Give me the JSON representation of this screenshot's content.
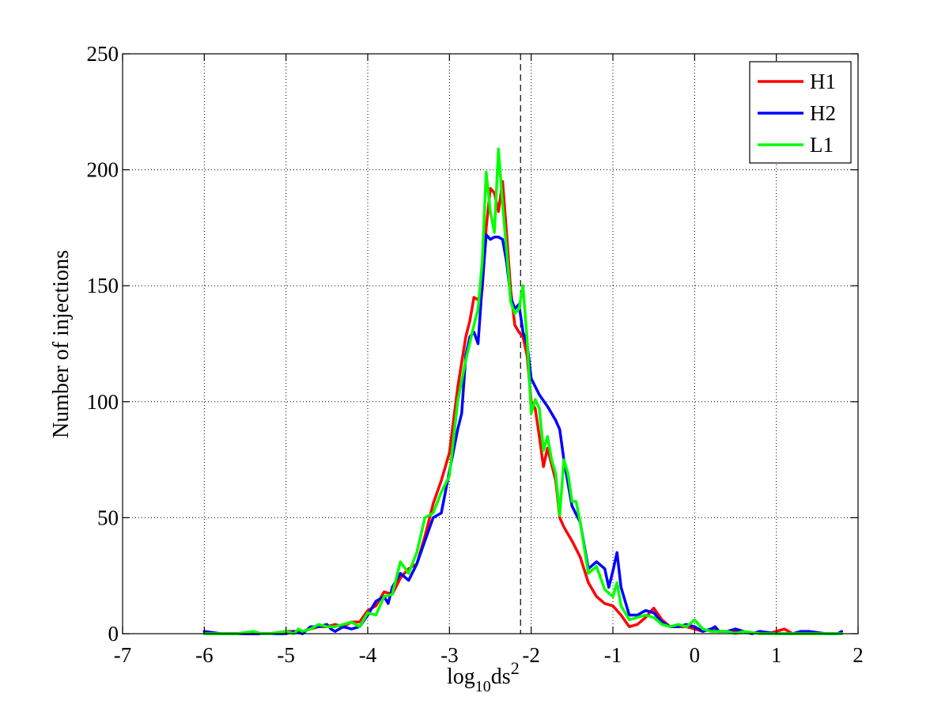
{
  "chart_data": {
    "type": "line",
    "title": "",
    "xlabel": "log",
    "xlabel_sub": "10",
    "xlabel_tail": "ds",
    "xlabel_sup": "2",
    "ylabel": "Number of injections",
    "xlim": [
      -7,
      2
    ],
    "ylim": [
      0,
      250
    ],
    "xticks": [
      -7,
      -6,
      -5,
      -4,
      -3,
      -2,
      -1,
      0,
      1,
      2
    ],
    "xtick_labels": [
      "-7",
      "-6",
      "-5",
      "-4",
      "-3",
      "-2",
      "-1",
      "0",
      "1",
      "2"
    ],
    "yticks": [
      0,
      50,
      100,
      150,
      200,
      250
    ],
    "ytick_labels": [
      "0",
      "50",
      "100",
      "150",
      "200",
      "250"
    ],
    "grid": true,
    "legend_position": "top-right",
    "threshold_x": -2.13,
    "series": [
      {
        "name": "H1",
        "color": "#ff0000",
        "points": [
          [
            -6,
            0
          ],
          [
            -5.8,
            0
          ],
          [
            -5.6,
            0
          ],
          [
            -5.4,
            0
          ],
          [
            -5.2,
            0
          ],
          [
            -5.0,
            1
          ],
          [
            -4.9,
            1
          ],
          [
            -4.8,
            1
          ],
          [
            -4.7,
            2
          ],
          [
            -4.6,
            3
          ],
          [
            -4.5,
            3
          ],
          [
            -4.4,
            4
          ],
          [
            -4.3,
            3
          ],
          [
            -4.2,
            5
          ],
          [
            -4.1,
            5
          ],
          [
            -4.0,
            10
          ],
          [
            -3.9,
            12
          ],
          [
            -3.8,
            18
          ],
          [
            -3.7,
            17
          ],
          [
            -3.6,
            24
          ],
          [
            -3.5,
            28
          ],
          [
            -3.4,
            30
          ],
          [
            -3.3,
            42
          ],
          [
            -3.2,
            56
          ],
          [
            -3.1,
            66
          ],
          [
            -3.0,
            78
          ],
          [
            -2.9,
            106
          ],
          [
            -2.8,
            128
          ],
          [
            -2.75,
            135
          ],
          [
            -2.7,
            145
          ],
          [
            -2.65,
            144
          ],
          [
            -2.6,
            148
          ],
          [
            -2.55,
            175
          ],
          [
            -2.5,
            192
          ],
          [
            -2.45,
            190
          ],
          [
            -2.4,
            182
          ],
          [
            -2.35,
            195
          ],
          [
            -2.3,
            172
          ],
          [
            -2.25,
            148
          ],
          [
            -2.2,
            133
          ],
          [
            -2.15,
            130
          ],
          [
            -2.1,
            128
          ],
          [
            -2.05,
            120
          ],
          [
            -2.0,
            100
          ],
          [
            -1.95,
            97
          ],
          [
            -1.9,
            85
          ],
          [
            -1.85,
            72
          ],
          [
            -1.8,
            80
          ],
          [
            -1.75,
            73
          ],
          [
            -1.7,
            66
          ],
          [
            -1.65,
            50
          ],
          [
            -1.6,
            46
          ],
          [
            -1.5,
            40
          ],
          [
            -1.4,
            33
          ],
          [
            -1.3,
            22
          ],
          [
            -1.2,
            16
          ],
          [
            -1.1,
            13
          ],
          [
            -1.0,
            12
          ],
          [
            -0.9,
            8
          ],
          [
            -0.8,
            3
          ],
          [
            -0.7,
            4
          ],
          [
            -0.6,
            7
          ],
          [
            -0.5,
            11
          ],
          [
            -0.4,
            6
          ],
          [
            -0.3,
            3
          ],
          [
            -0.2,
            3
          ],
          [
            -0.1,
            3
          ],
          [
            0.0,
            2
          ],
          [
            0.1,
            1
          ],
          [
            0.2,
            2
          ],
          [
            0.3,
            1
          ],
          [
            0.4,
            1
          ],
          [
            0.5,
            1
          ],
          [
            0.6,
            1
          ],
          [
            0.7,
            0
          ],
          [
            0.8,
            1
          ],
          [
            0.9,
            0
          ],
          [
            1.0,
            1
          ],
          [
            1.1,
            2
          ],
          [
            1.2,
            0
          ],
          [
            1.3,
            0
          ],
          [
            1.5,
            0
          ],
          [
            1.8,
            0
          ]
        ]
      },
      {
        "name": "H2",
        "color": "#0000ff",
        "points": [
          [
            -6,
            1
          ],
          [
            -5.8,
            0
          ],
          [
            -5.6,
            0
          ],
          [
            -5.4,
            0
          ],
          [
            -5.2,
            0
          ],
          [
            -5.0,
            0
          ],
          [
            -4.9,
            1
          ],
          [
            -4.8,
            0
          ],
          [
            -4.7,
            3
          ],
          [
            -4.6,
            3
          ],
          [
            -4.5,
            4
          ],
          [
            -4.45,
            2
          ],
          [
            -4.4,
            1
          ],
          [
            -4.3,
            3
          ],
          [
            -4.2,
            2
          ],
          [
            -4.1,
            3
          ],
          [
            -4.0,
            8
          ],
          [
            -3.9,
            14
          ],
          [
            -3.8,
            16
          ],
          [
            -3.75,
            13
          ],
          [
            -3.7,
            20
          ],
          [
            -3.6,
            26
          ],
          [
            -3.5,
            23
          ],
          [
            -3.4,
            30
          ],
          [
            -3.3,
            40
          ],
          [
            -3.2,
            50
          ],
          [
            -3.1,
            52
          ],
          [
            -3.0,
            70
          ],
          [
            -2.9,
            88
          ],
          [
            -2.85,
            95
          ],
          [
            -2.8,
            120
          ],
          [
            -2.75,
            128
          ],
          [
            -2.7,
            130
          ],
          [
            -2.65,
            125
          ],
          [
            -2.6,
            150
          ],
          [
            -2.55,
            172
          ],
          [
            -2.5,
            170
          ],
          [
            -2.45,
            171
          ],
          [
            -2.4,
            171
          ],
          [
            -2.35,
            170
          ],
          [
            -2.3,
            160
          ],
          [
            -2.25,
            145
          ],
          [
            -2.2,
            140
          ],
          [
            -2.15,
            142
          ],
          [
            -2.1,
            130
          ],
          [
            -2.05,
            125
          ],
          [
            -2.0,
            110
          ],
          [
            -1.9,
            103
          ],
          [
            -1.8,
            98
          ],
          [
            -1.7,
            92
          ],
          [
            -1.65,
            88
          ],
          [
            -1.6,
            75
          ],
          [
            -1.5,
            55
          ],
          [
            -1.4,
            48
          ],
          [
            -1.3,
            28
          ],
          [
            -1.2,
            31
          ],
          [
            -1.1,
            28
          ],
          [
            -1.05,
            20
          ],
          [
            -1.0,
            27
          ],
          [
            -0.95,
            35
          ],
          [
            -0.9,
            20
          ],
          [
            -0.8,
            8
          ],
          [
            -0.7,
            8
          ],
          [
            -0.6,
            10
          ],
          [
            -0.5,
            9
          ],
          [
            -0.4,
            5
          ],
          [
            -0.3,
            3
          ],
          [
            -0.2,
            3
          ],
          [
            -0.1,
            4
          ],
          [
            0.0,
            3
          ],
          [
            0.1,
            1
          ],
          [
            0.2,
            2
          ],
          [
            0.25,
            3
          ],
          [
            0.3,
            1
          ],
          [
            0.4,
            1
          ],
          [
            0.5,
            2
          ],
          [
            0.6,
            1
          ],
          [
            0.7,
            0
          ],
          [
            0.8,
            1
          ],
          [
            1.0,
            0
          ],
          [
            1.2,
            0
          ],
          [
            1.3,
            1
          ],
          [
            1.4,
            1
          ],
          [
            1.6,
            0
          ],
          [
            1.75,
            0
          ],
          [
            1.8,
            1
          ]
        ]
      },
      {
        "name": "L1",
        "color": "#00ff00",
        "points": [
          [
            -6,
            0
          ],
          [
            -5.8,
            0
          ],
          [
            -5.6,
            0
          ],
          [
            -5.4,
            1
          ],
          [
            -5.3,
            0
          ],
          [
            -5.2,
            0
          ],
          [
            -5.0,
            1
          ],
          [
            -4.9,
            0
          ],
          [
            -4.85,
            2
          ],
          [
            -4.8,
            1
          ],
          [
            -4.7,
            2
          ],
          [
            -4.6,
            4
          ],
          [
            -4.5,
            3
          ],
          [
            -4.4,
            3
          ],
          [
            -4.3,
            4
          ],
          [
            -4.2,
            5
          ],
          [
            -4.1,
            3
          ],
          [
            -4.0,
            9
          ],
          [
            -3.9,
            8
          ],
          [
            -3.8,
            16
          ],
          [
            -3.7,
            17
          ],
          [
            -3.6,
            31
          ],
          [
            -3.5,
            26
          ],
          [
            -3.4,
            35
          ],
          [
            -3.3,
            50
          ],
          [
            -3.2,
            52
          ],
          [
            -3.1,
            61
          ],
          [
            -3.0,
            68
          ],
          [
            -2.9,
            100
          ],
          [
            -2.8,
            118
          ],
          [
            -2.7,
            133
          ],
          [
            -2.65,
            140
          ],
          [
            -2.6,
            160
          ],
          [
            -2.55,
            199
          ],
          [
            -2.5,
            182
          ],
          [
            -2.45,
            173
          ],
          [
            -2.4,
            209
          ],
          [
            -2.35,
            185
          ],
          [
            -2.3,
            165
          ],
          [
            -2.25,
            143
          ],
          [
            -2.2,
            138
          ],
          [
            -2.15,
            140
          ],
          [
            -2.1,
            150
          ],
          [
            -2.05,
            127
          ],
          [
            -2.0,
            95
          ],
          [
            -1.95,
            101
          ],
          [
            -1.9,
            97
          ],
          [
            -1.85,
            79
          ],
          [
            -1.8,
            85
          ],
          [
            -1.75,
            75
          ],
          [
            -1.7,
            69
          ],
          [
            -1.65,
            51
          ],
          [
            -1.6,
            75
          ],
          [
            -1.55,
            69
          ],
          [
            -1.5,
            57
          ],
          [
            -1.45,
            57
          ],
          [
            -1.4,
            48
          ],
          [
            -1.3,
            26
          ],
          [
            -1.2,
            29
          ],
          [
            -1.1,
            19
          ],
          [
            -1.0,
            16
          ],
          [
            -0.95,
            22
          ],
          [
            -0.9,
            12
          ],
          [
            -0.8,
            6
          ],
          [
            -0.7,
            7
          ],
          [
            -0.6,
            8
          ],
          [
            -0.5,
            7
          ],
          [
            -0.4,
            4
          ],
          [
            -0.3,
            3
          ],
          [
            -0.2,
            4
          ],
          [
            -0.1,
            3
          ],
          [
            0.0,
            6
          ],
          [
            0.1,
            2
          ],
          [
            0.2,
            1
          ],
          [
            0.3,
            1
          ],
          [
            0.4,
            1
          ],
          [
            0.5,
            0
          ],
          [
            0.6,
            1
          ],
          [
            0.8,
            0
          ],
          [
            1.0,
            0
          ],
          [
            1.5,
            0
          ],
          [
            1.8,
            0
          ]
        ]
      }
    ]
  }
}
